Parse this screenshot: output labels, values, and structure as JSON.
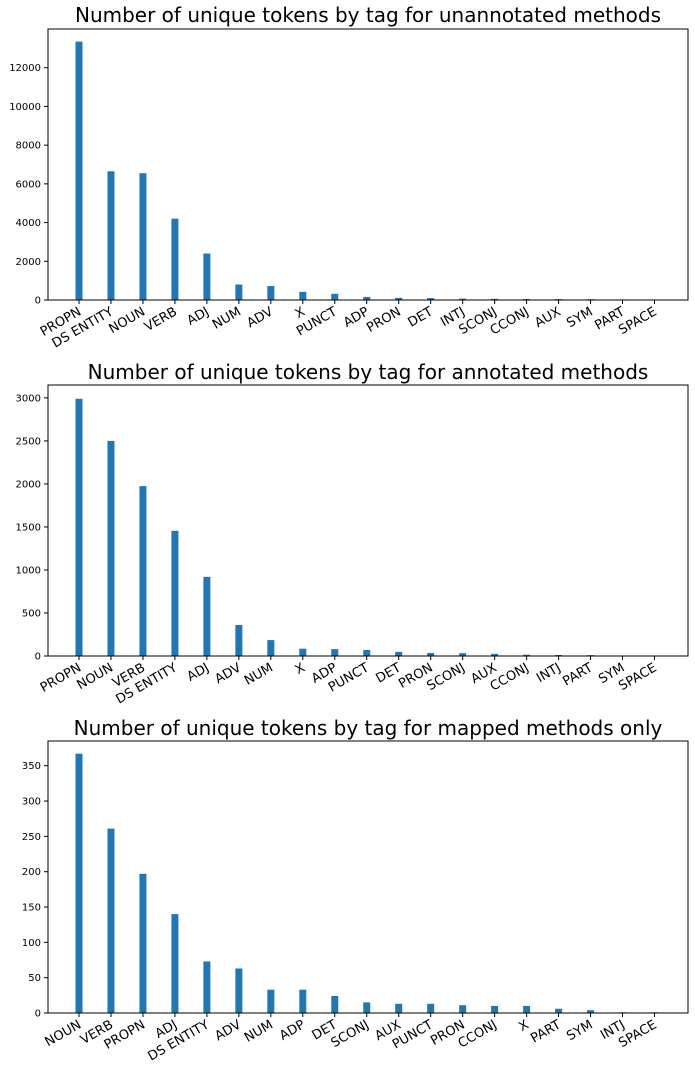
{
  "colors": {
    "bar": "#1f77b4",
    "axes": "#000000",
    "background": "#ffffff"
  },
  "chart_data": [
    {
      "type": "bar",
      "title": "Number of unique tokens by tag for unannotated methods",
      "xlabel": "",
      "ylabel": "",
      "categories": [
        "PROPN",
        "DS ENTITY",
        "NOUN",
        "VERB",
        "ADJ",
        "NUM",
        "ADV",
        "X",
        "PUNCT",
        "ADP",
        "PRON",
        "DET",
        "INTJ",
        "SCONJ",
        "CCONJ",
        "AUX",
        "SYM",
        "PART",
        "SPACE"
      ],
      "values": [
        13350,
        6650,
        6550,
        4200,
        2400,
        800,
        720,
        420,
        320,
        160,
        110,
        100,
        70,
        60,
        50,
        45,
        40,
        30,
        5
      ],
      "ylim": [
        0,
        14000
      ],
      "yticks": [
        0,
        2000,
        4000,
        6000,
        8000,
        10000,
        12000
      ],
      "grid": false,
      "legend": "none"
    },
    {
      "type": "bar",
      "title": "Number of unique tokens by tag for annotated methods",
      "xlabel": "",
      "ylabel": "",
      "categories": [
        "PROPN",
        "NOUN",
        "VERB",
        "DS ENTITY",
        "ADJ",
        "ADV",
        "NUM",
        "X",
        "ADP",
        "PUNCT",
        "DET",
        "PRON",
        "SCONJ",
        "AUX",
        "CCONJ",
        "INTJ",
        "PART",
        "SYM",
        "SPACE"
      ],
      "values": [
        2990,
        2500,
        1975,
        1455,
        920,
        360,
        185,
        85,
        80,
        70,
        48,
        35,
        33,
        25,
        15,
        12,
        10,
        3,
        1
      ],
      "ylim": [
        0,
        3150
      ],
      "yticks": [
        0,
        500,
        1000,
        1500,
        2000,
        2500,
        3000
      ],
      "grid": false,
      "legend": "none"
    },
    {
      "type": "bar",
      "title": "Number of unique tokens by tag for mapped methods only",
      "xlabel": "",
      "ylabel": "",
      "categories": [
        "NOUN",
        "VERB",
        "PROPN",
        "ADJ",
        "DS ENTITY",
        "ADV",
        "NUM",
        "ADP",
        "DET",
        "SCONJ",
        "AUX",
        "PUNCT",
        "PRON",
        "CCONJ",
        "X",
        "PART",
        "SYM",
        "INTJ",
        "SPACE"
      ],
      "values": [
        367,
        261,
        197,
        140,
        73,
        63,
        33,
        33,
        24,
        15,
        13,
        13,
        11,
        10,
        10,
        6,
        4,
        1,
        1
      ],
      "ylim": [
        0,
        385
      ],
      "yticks": [
        0,
        50,
        100,
        150,
        200,
        250,
        300,
        350
      ],
      "grid": false,
      "legend": "none"
    }
  ]
}
